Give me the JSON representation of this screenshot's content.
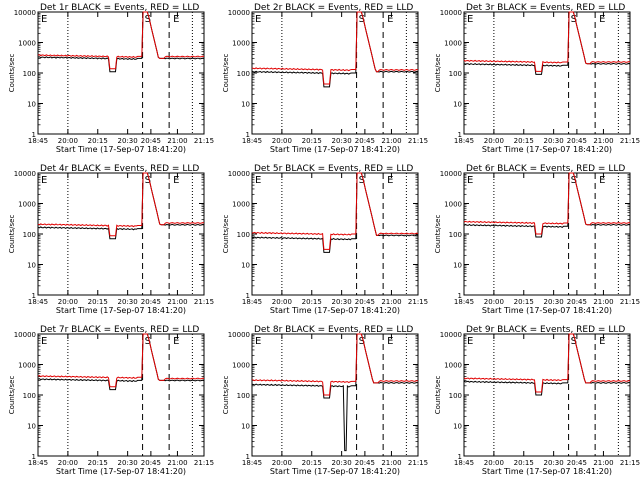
{
  "page": {
    "x_axis_label": "Start Time (17-Sep-07 18:41:20)",
    "y_axis_label": "Counts/sec"
  },
  "colors": {
    "events": "#000000",
    "lld": "#e00000",
    "background": "#ffffff"
  },
  "markers": {
    "start": "S",
    "end": "E",
    "left": "E"
  },
  "chart_data": [
    {
      "type": "line",
      "title": "Det 1r BLACK = Events, RED = LLD",
      "xticks": [
        "18:45",
        "20:00",
        "20:15",
        "20:30",
        "20:45",
        "21:00",
        "21:15"
      ],
      "yticks": [
        "1",
        "10",
        "100",
        "1000",
        "10000"
      ],
      "ylim": [
        1,
        10000
      ],
      "y_scale": "log",
      "events_base": 300,
      "lld_base": 350,
      "dip_to": 110,
      "peak": 10000,
      "post": 300
    },
    {
      "type": "line",
      "title": "Det 2r BLACK = Events, RED = LLD",
      "xticks": [
        "18:45",
        "20:00",
        "20:15",
        "20:30",
        "20:45",
        "21:00",
        "21:15"
      ],
      "yticks": [
        "1",
        "10",
        "100",
        "1000",
        "10000"
      ],
      "ylim": [
        1,
        10000
      ],
      "y_scale": "log",
      "events_base": 100,
      "lld_base": 130,
      "dip_to": 35,
      "peak": 10000,
      "post": 110
    },
    {
      "type": "line",
      "title": "Det 3r BLACK = Events, RED = LLD",
      "xticks": [
        "18:45",
        "20:00",
        "20:15",
        "20:30",
        "20:45",
        "21:00",
        "21:15"
      ],
      "yticks": [
        "1",
        "10",
        "100",
        "1000",
        "10000"
      ],
      "ylim": [
        1,
        10000
      ],
      "y_scale": "log",
      "events_base": 180,
      "lld_base": 230,
      "dip_to": 90,
      "peak": 10000,
      "post": 200
    },
    {
      "type": "line",
      "title": "Det 4r BLACK = Events, RED = LLD",
      "xticks": [
        "18:45",
        "20:00",
        "20:15",
        "20:30",
        "20:45",
        "21:00",
        "21:15"
      ],
      "yticks": [
        "1",
        "10",
        "100",
        "1000",
        "10000"
      ],
      "ylim": [
        1,
        10000
      ],
      "y_scale": "log",
      "events_base": 150,
      "lld_base": 190,
      "dip_to": 70,
      "peak": 10000,
      "post": 200
    },
    {
      "type": "line",
      "title": "Det 5r BLACK = Events, RED = LLD",
      "xticks": [
        "18:45",
        "20:00",
        "20:15",
        "20:30",
        "20:45",
        "21:00",
        "21:15"
      ],
      "yticks": [
        "1",
        "10",
        "100",
        "1000",
        "10000"
      ],
      "ylim": [
        1,
        10000
      ],
      "y_scale": "log",
      "events_base": 70,
      "lld_base": 100,
      "dip_to": 25,
      "peak": 10000,
      "post": 90
    },
    {
      "type": "line",
      "title": "Det 6r BLACK = Events, RED = LLD",
      "xticks": [
        "18:45",
        "20:00",
        "20:15",
        "20:30",
        "20:45",
        "21:00",
        "21:15"
      ],
      "yticks": [
        "1",
        "10",
        "100",
        "1000",
        "10000"
      ],
      "ylim": [
        1,
        10000
      ],
      "y_scale": "log",
      "events_base": 180,
      "lld_base": 230,
      "dip_to": 80,
      "peak": 10000,
      "post": 200
    },
    {
      "type": "line",
      "title": "Det 7r BLACK = Events, RED = LLD",
      "xticks": [
        "18:45",
        "20:00",
        "20:15",
        "20:30",
        "20:45",
        "21:00",
        "21:15"
      ],
      "yticks": [
        "1",
        "10",
        "100",
        "1000",
        "10000"
      ],
      "ylim": [
        1,
        10000
      ],
      "y_scale": "log",
      "events_base": 300,
      "lld_base": 380,
      "dip_to": 150,
      "peak": 10000,
      "post": 300
    },
    {
      "type": "line",
      "title": "Det 8r BLACK = Events, RED = LLD",
      "xticks": [
        "18:45",
        "20:00",
        "20:15",
        "20:30",
        "20:45",
        "21:00",
        "21:15"
      ],
      "yticks": [
        "1",
        "10",
        "100",
        "1000",
        "10000"
      ],
      "ylim": [
        1,
        10000
      ],
      "y_scale": "log",
      "events_base": 200,
      "lld_base": 280,
      "dip_to": 80,
      "deep_dip": 1.5,
      "peak": 10000,
      "post": 250
    },
    {
      "type": "line",
      "title": "Det 9r BLACK = Events, RED = LLD",
      "xticks": [
        "18:45",
        "20:00",
        "20:15",
        "20:30",
        "20:45",
        "21:00",
        "21:15"
      ],
      "yticks": [
        "1",
        "10",
        "100",
        "1000",
        "10000"
      ],
      "ylim": [
        1,
        10000
      ],
      "y_scale": "log",
      "events_base": 250,
      "lld_base": 320,
      "dip_to": 100,
      "peak": 10000,
      "post": 250
    }
  ]
}
